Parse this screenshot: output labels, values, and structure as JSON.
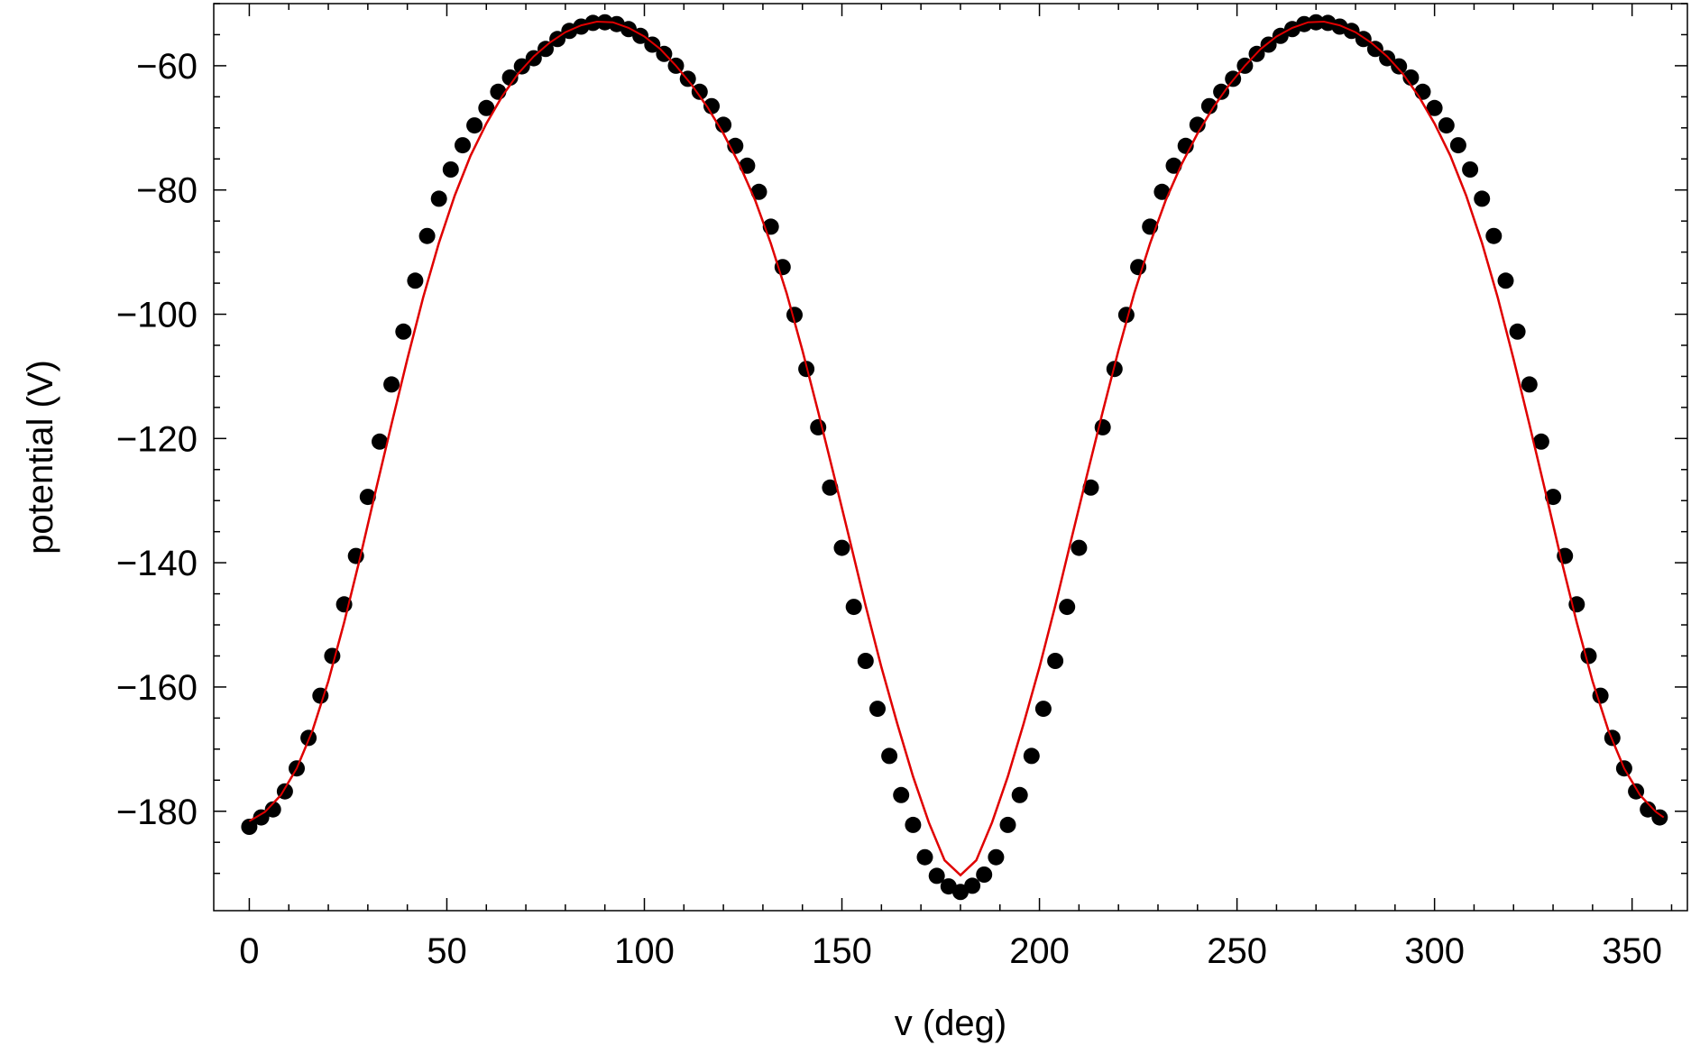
{
  "chart_data": {
    "type": "scatter",
    "title": "",
    "xlabel": "v (deg)",
    "ylabel": "potential (V)",
    "xlim": [
      -9,
      364
    ],
    "ylim": [
      -196,
      -50
    ],
    "xticks": [
      0,
      50,
      100,
      150,
      200,
      250,
      300,
      350
    ],
    "yticks": [
      -60,
      -80,
      -100,
      -120,
      -140,
      -160,
      -180
    ],
    "xtick_labels": [
      "0",
      "50",
      "100",
      "150",
      "200",
      "250",
      "300",
      "350"
    ],
    "ytick_labels": [
      "−60",
      "−80",
      "−100",
      "−120",
      "−140",
      "−160",
      "−180"
    ],
    "grid": false,
    "legend": "none",
    "series": [
      {
        "kind": "points",
        "color": "#000000",
        "x": [
          0,
          3,
          6,
          9,
          12,
          15,
          18,
          21,
          24,
          27,
          30,
          33,
          36,
          39,
          42,
          45,
          48,
          51,
          54,
          57,
          60,
          63,
          66,
          69,
          72,
          75,
          78,
          81,
          84,
          87,
          90,
          93,
          96,
          99,
          102,
          105,
          108,
          111,
          114,
          117,
          120,
          123,
          126,
          129,
          132,
          135,
          138,
          141,
          144,
          147,
          150,
          153,
          156,
          159,
          162,
          165,
          168,
          171,
          174,
          177,
          180,
          183,
          186,
          189,
          192,
          195,
          198,
          201,
          204,
          207,
          210,
          213,
          216,
          219,
          222,
          225,
          228,
          231,
          234,
          237,
          240,
          243,
          246,
          249,
          252,
          255,
          258,
          261,
          264,
          267,
          270,
          273,
          276,
          279,
          282,
          285,
          288,
          291,
          294,
          297,
          300,
          303,
          306,
          309,
          312,
          315,
          318,
          321,
          324,
          327,
          330,
          333,
          336,
          339,
          342,
          345,
          348,
          351,
          354,
          357
        ],
        "y": [
          -182.5,
          -181,
          -179.7,
          -176.8,
          -173.1,
          -168.2,
          -161.4,
          -155,
          -146.7,
          -138.9,
          -129.4,
          -120.5,
          -111.3,
          -102.8,
          -94.6,
          -87.4,
          -81.4,
          -76.7,
          -72.8,
          -69.6,
          -66.8,
          -64.2,
          -61.9,
          -60.1,
          -58.8,
          -57.3,
          -55.7,
          -54.4,
          -53.7,
          -53.1,
          -53.0,
          -53.3,
          -54.1,
          -55.2,
          -56.6,
          -58.1,
          -60.0,
          -62.1,
          -64.2,
          -66.5,
          -69.5,
          -72.9,
          -76.1,
          -80.3,
          -85.9,
          -92.4,
          -100.1,
          -108.8,
          -118.2,
          -127.9,
          -137.6,
          -147.1,
          -155.8,
          -163.5,
          -171.1,
          -177.4,
          -182.2,
          -187.4,
          -190.4,
          -192.1,
          -193.0,
          -192.0,
          -190.2,
          -187.4,
          -182.2,
          -177.4,
          -171.1,
          -163.5,
          -155.8,
          -147.1,
          -137.6,
          -127.9,
          -118.2,
          -108.8,
          -100.1,
          -92.4,
          -85.9,
          -80.3,
          -76.1,
          -72.9,
          -69.5,
          -66.5,
          -64.2,
          -62.1,
          -60.0,
          -58.1,
          -56.6,
          -55.2,
          -54.1,
          -53.3,
          -53.0,
          -53.1,
          -53.7,
          -54.4,
          -55.7,
          -57.3,
          -58.8,
          -60.1,
          -61.9,
          -64.2,
          -66.8,
          -69.6,
          -72.8,
          -76.7,
          -81.4,
          -87.4,
          -94.6,
          -102.8,
          -111.3,
          -120.5,
          -129.4,
          -138.9,
          -146.7,
          -155,
          -161.4,
          -168.2,
          -173.1,
          -176.8,
          -179.7,
          -181
        ]
      },
      {
        "kind": "fit-curve",
        "color": "#e00000",
        "x": [
          0,
          4,
          8,
          12,
          16,
          20,
          24,
          28,
          32,
          36,
          40,
          44,
          48,
          52,
          56,
          60,
          64,
          68,
          72,
          76,
          80,
          84,
          88,
          92,
          96,
          100,
          104,
          108,
          112,
          116,
          120,
          124,
          128,
          132,
          136,
          140,
          144,
          148,
          152,
          156,
          160,
          164,
          168,
          172,
          176,
          180,
          184,
          188,
          192,
          196,
          200,
          204,
          208,
          212,
          216,
          220,
          224,
          228,
          232,
          236,
          240,
          244,
          248,
          252,
          256,
          260,
          264,
          268,
          272,
          276,
          280,
          284,
          288,
          292,
          296,
          300,
          304,
          308,
          312,
          316,
          320,
          324,
          328,
          332,
          336,
          340,
          344,
          348,
          352,
          356,
          358
        ],
        "y": [
          -181.6,
          -180.1,
          -177.4,
          -173.1,
          -167.0,
          -159.1,
          -149.6,
          -139.3,
          -128.4,
          -117.7,
          -107.2,
          -97.3,
          -88.5,
          -80.9,
          -74.5,
          -69.3,
          -64.9,
          -61.3,
          -58.5,
          -56.3,
          -54.6,
          -53.5,
          -52.9,
          -53.0,
          -53.9,
          -55.3,
          -57.3,
          -60.0,
          -63.1,
          -66.7,
          -70.9,
          -75.8,
          -81.6,
          -88.6,
          -96.6,
          -105.8,
          -115.7,
          -126.0,
          -136.4,
          -146.9,
          -156.8,
          -165.9,
          -174.4,
          -181.8,
          -187.9,
          -190.3,
          -187.9,
          -181.8,
          -174.4,
          -165.9,
          -156.8,
          -146.9,
          -136.4,
          -126.0,
          -115.7,
          -105.8,
          -96.6,
          -88.6,
          -81.6,
          -75.8,
          -70.9,
          -66.7,
          -63.1,
          -60.0,
          -57.3,
          -55.3,
          -53.9,
          -53.0,
          -52.9,
          -53.5,
          -54.6,
          -56.3,
          -58.5,
          -61.3,
          -64.9,
          -69.3,
          -74.5,
          -80.9,
          -88.5,
          -97.3,
          -107.2,
          -117.7,
          -128.4,
          -139.3,
          -149.6,
          -159.1,
          -167.0,
          -173.1,
          -177.4,
          -180.1,
          -181.0
        ]
      }
    ]
  }
}
